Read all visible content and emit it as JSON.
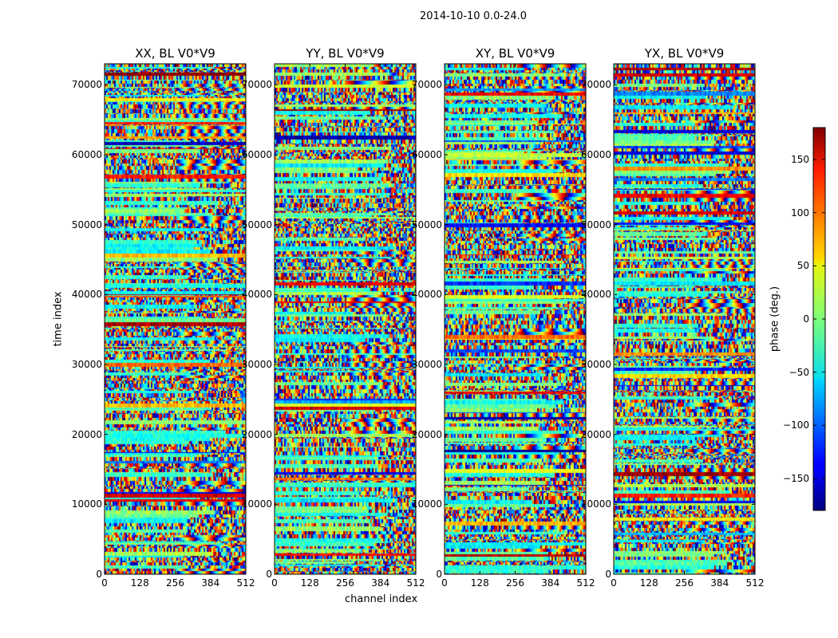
{
  "chart_data": {
    "type": "heatmap",
    "suptitle": "2014-10-10 0.0-24.0",
    "xlabel": "channel index",
    "ylabel": "time index",
    "xlim": [
      0,
      512
    ],
    "ylim": [
      0,
      73000
    ],
    "x_ticks": [
      "0",
      "128",
      "256",
      "384",
      "512"
    ],
    "y_ticks": [
      "0",
      "10000",
      "20000",
      "30000",
      "40000",
      "50000",
      "60000",
      "70000"
    ],
    "panels": [
      {
        "name": "XX",
        "title": "XX, BL V0*V9"
      },
      {
        "name": "YY",
        "title": "YY, BL V0*V9"
      },
      {
        "name": "XY",
        "title": "XY, BL V0*V9"
      },
      {
        "name": "YX",
        "title": "YX, BL V0*V9"
      }
    ],
    "colorbar": {
      "label": "phase (deg.)",
      "range": [
        -180,
        180
      ],
      "ticks": [
        "150",
        "100",
        "50",
        "0",
        "−50",
        "−100",
        "−150"
      ],
      "colormap": "jet"
    }
  }
}
